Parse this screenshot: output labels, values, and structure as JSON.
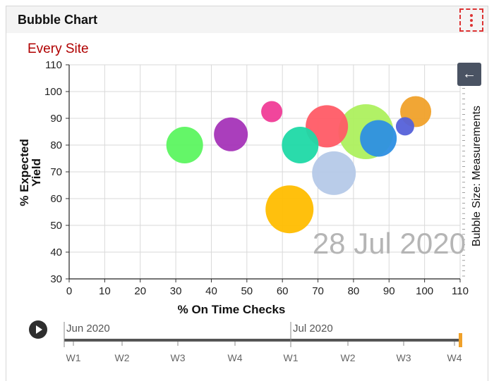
{
  "panel": {
    "title": "Bubble Chart"
  },
  "chart_data": {
    "type": "scatter",
    "subtitle": "Every Site",
    "xlabel": "% On Time Checks",
    "ylabel_lines": [
      "% Expected",
      "Yield"
    ],
    "size_label": "Bubble Size: Measurements",
    "date_label": "28 Jul 2020",
    "xlim": [
      0,
      110
    ],
    "ylim": [
      30,
      110
    ],
    "x_ticks": [
      "0",
      "10",
      "20",
      "30",
      "40",
      "50",
      "60",
      "70",
      "80",
      "90",
      "100",
      "110"
    ],
    "y_ticks": [
      "30",
      "40",
      "50",
      "60",
      "70",
      "80",
      "90",
      "100",
      "110"
    ],
    "grid": true,
    "bubbles": [
      {
        "x": 83.5,
        "y": 85,
        "r": 39,
        "color": "#adf05e"
      },
      {
        "x": 72.5,
        "y": 87,
        "r": 30,
        "color": "#ff5b66"
      },
      {
        "x": 74.5,
        "y": 69.5,
        "r": 31,
        "color": "#b5c9e8"
      },
      {
        "x": 62,
        "y": 56,
        "r": 34,
        "color": "#ffbd00"
      },
      {
        "x": 65,
        "y": 80,
        "r": 26,
        "color": "#1fd9a6"
      },
      {
        "x": 87,
        "y": 82.5,
        "r": 26,
        "color": "#2d8fe3"
      },
      {
        "x": 97.5,
        "y": 92.5,
        "r": 22,
        "color": "#f0a12a"
      },
      {
        "x": 94.5,
        "y": 87,
        "r": 13,
        "color": "#5561d9"
      },
      {
        "x": 32.5,
        "y": 80,
        "r": 26,
        "color": "#5cf560"
      },
      {
        "x": 45.5,
        "y": 84,
        "r": 24,
        "color": "#a534b8"
      },
      {
        "x": 57,
        "y": 92.5,
        "r": 15,
        "color": "#f03c97"
      }
    ]
  },
  "timeline": {
    "months": [
      "Jun 2020",
      "Jul 2020"
    ],
    "weeks": [
      "W1",
      "W2",
      "W3",
      "W4",
      "W1",
      "W2",
      "W3",
      "W4"
    ],
    "position": 1.0
  },
  "colors": {
    "accent_red": "#b00000",
    "header_bg": "#f4f4f4",
    "handle": "#f0a12a"
  }
}
